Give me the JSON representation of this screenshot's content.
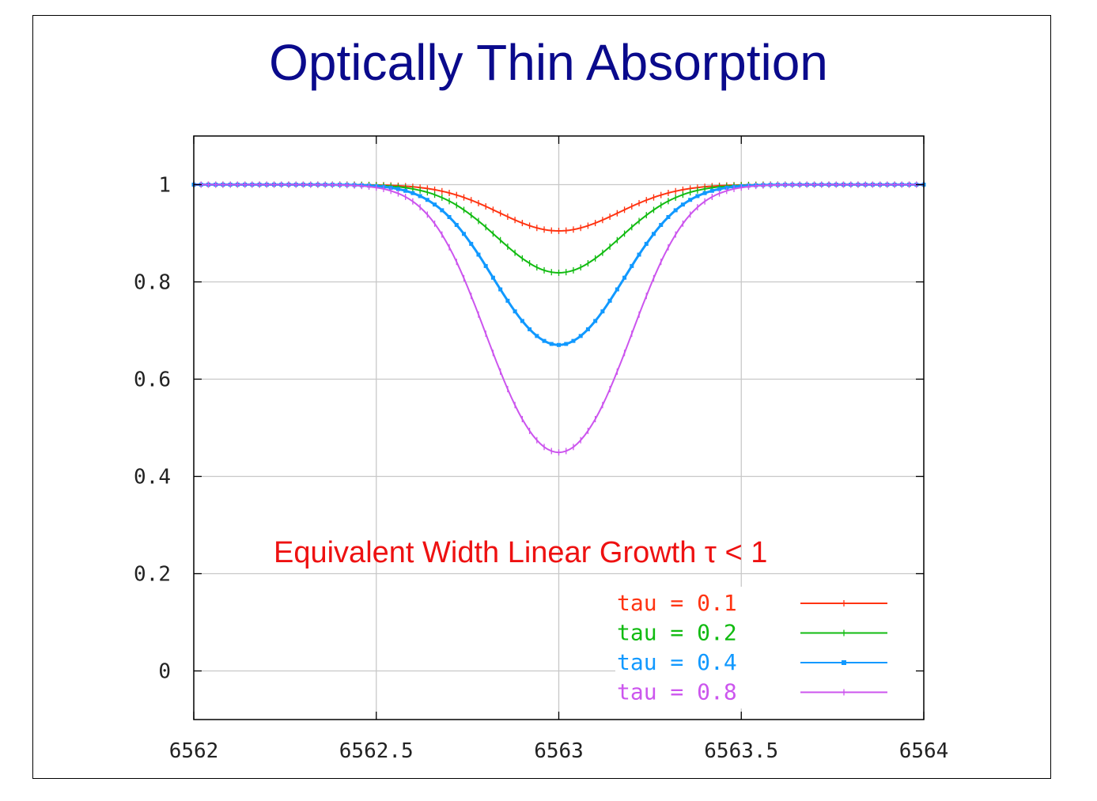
{
  "title": "Optically Thin Absorption",
  "chart_data": {
    "type": "line",
    "title": "",
    "xlabel": "",
    "ylabel": "",
    "xlim": [
      6562,
      6564
    ],
    "ylim": [
      -0.1,
      1.1
    ],
    "x_ticks": [
      6562,
      6562.5,
      6563,
      6563.5,
      6564
    ],
    "x_tick_labels": [
      "6562",
      "6562.5",
      "6563",
      "6563.5",
      "6564"
    ],
    "y_ticks": [
      0,
      0.2,
      0.4,
      0.6,
      0.8,
      1
    ],
    "y_tick_labels": [
      "0",
      "0.2",
      "0.4",
      "0.6",
      "0.8",
      "1"
    ],
    "grid": true,
    "legend_position": "bottom-right",
    "annotation": "Equivalent Width Linear Growth τ < 1",
    "line_center": 6563,
    "line_width_sigma": 0.16,
    "series": [
      {
        "name": "tau = 0.1",
        "tau": 0.1,
        "color": "#ff3311",
        "min_value": 0.905
      },
      {
        "name": "tau = 0.2",
        "tau": 0.2,
        "color": "#11bb11",
        "min_value": 0.819
      },
      {
        "name": "tau = 0.4",
        "tau": 0.4,
        "color": "#1199ff",
        "min_value": 0.67
      },
      {
        "name": "tau = 0.8",
        "tau": 0.8,
        "color": "#cc55ee",
        "min_value": 0.449
      }
    ]
  }
}
